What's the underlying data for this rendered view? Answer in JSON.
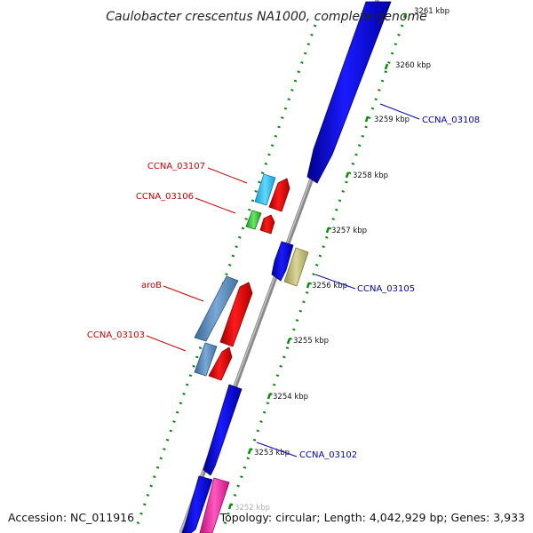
{
  "title": "Caulobacter crescentus NA1000, complete genome",
  "footer": {
    "accession": "Accession: NC_011916",
    "summary": "Topology: circular; Length: 4,042,929 bp; Genes: 3,933"
  },
  "ticks": [
    "3261 kbp",
    "3260 kbp",
    "3259 kbp",
    "3258 kbp",
    "3257 kbp",
    "3256 kbp",
    "3255 kbp",
    "3254 kbp",
    "3253 kbp",
    "3252 kbp"
  ],
  "labels": {
    "ccna_03108": "CCNA_03108",
    "ccna_03107": "CCNA_03107",
    "ccna_03106": "CCNA_03106",
    "ccna_03105": "CCNA_03105",
    "arob": "aroB",
    "ccna_03103": "CCNA_03103",
    "ccna_03102": "CCNA_03102"
  },
  "colors": {
    "forward_gene": "#0000ee",
    "reverse_gene": "#ee0000",
    "backbone": "#8a8a8a",
    "dots": "#0a8a0a",
    "label_forward": "#0000bb",
    "label_reverse": "#cc0000"
  }
}
